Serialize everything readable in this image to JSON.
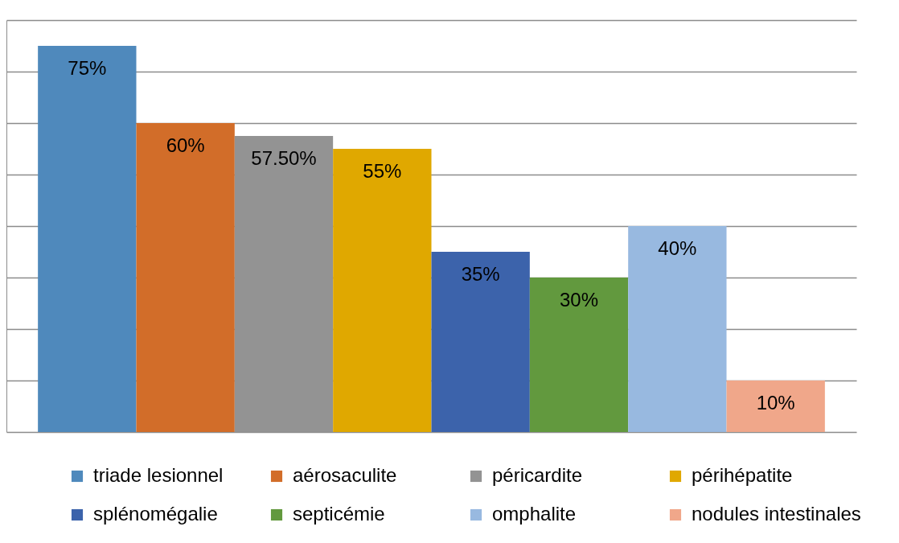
{
  "chart_data": {
    "type": "bar",
    "categories": [
      null
    ],
    "series": [
      {
        "name": "triade lesionnel",
        "color": "#4f89bc",
        "values": [
          75
        ],
        "value_labels": [
          "75%"
        ]
      },
      {
        "name": "aérosaculite",
        "color": "#d26d29",
        "values": [
          60
        ],
        "value_labels": [
          "60%"
        ]
      },
      {
        "name": "péricardite",
        "color": "#939393",
        "values": [
          57.5
        ],
        "value_labels": [
          "57.50%"
        ]
      },
      {
        "name": "périhépatite",
        "color": "#e0a800",
        "values": [
          55
        ],
        "value_labels": [
          "55%"
        ]
      },
      {
        "name": "splénomégalie",
        "color": "#3c63ab",
        "values": [
          35
        ],
        "value_labels": [
          "35%"
        ]
      },
      {
        "name": "septicémie",
        "color": "#62993e",
        "values": [
          30
        ],
        "value_labels": [
          "30%"
        ]
      },
      {
        "name": "omphalite",
        "color": "#98b9e0",
        "values": [
          40
        ],
        "value_labels": [
          "40%"
        ]
      },
      {
        "name": "nodules intestinales",
        "color": "#f0a78a",
        "values": [
          10
        ],
        "value_labels": [
          "10%"
        ]
      }
    ],
    "ylim": [
      0,
      80
    ],
    "yticks": [
      0,
      10,
      20,
      30,
      40,
      50,
      60,
      70,
      80
    ],
    "grid": "y",
    "legend": "bottom",
    "tick_labels": false
  }
}
